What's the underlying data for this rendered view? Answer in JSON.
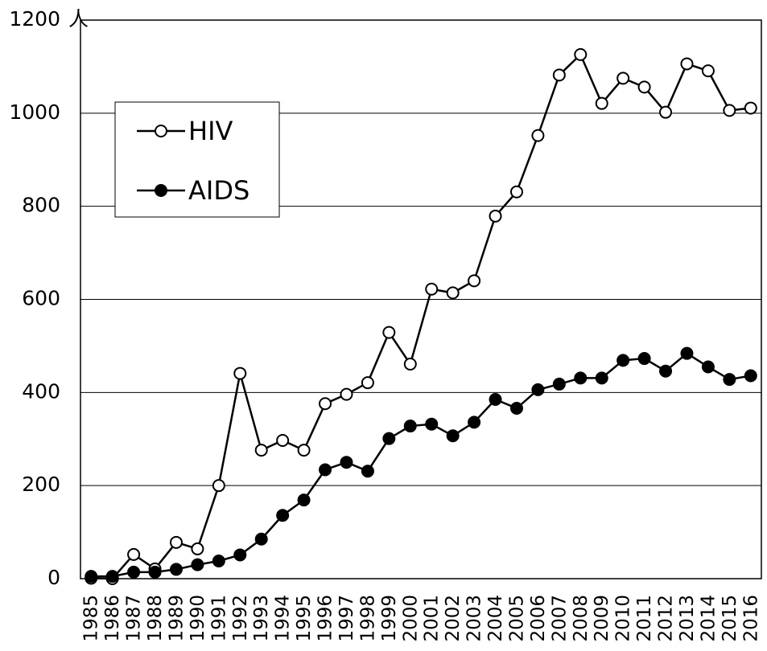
{
  "chart_data": {
    "type": "line",
    "y_unit": "人",
    "categories": [
      "1985",
      "1986",
      "1987",
      "1988",
      "1989",
      "1990",
      "1991",
      "1992",
      "1993",
      "1994",
      "1995",
      "1996",
      "1997",
      "1998",
      "1999",
      "2000",
      "2001",
      "2002",
      "2003",
      "2004",
      "2005",
      "2006",
      "2007",
      "2008",
      "2009",
      "2010",
      "2011",
      "2012",
      "2013",
      "2014",
      "2015",
      "2016"
    ],
    "series": [
      {
        "name": "HIV",
        "color": "#ffffff",
        "values": [
          1,
          0,
          52,
          21,
          78,
          64,
          200,
          441,
          276,
          297,
          276,
          376,
          396,
          421,
          529,
          461,
          622,
          614,
          640,
          779,
          831,
          952,
          1082,
          1126,
          1021,
          1075,
          1056,
          1002,
          1106,
          1091,
          1006,
          1011
        ]
      },
      {
        "name": "AIDS",
        "color": "#000000",
        "values": [
          5,
          5,
          14,
          14,
          20,
          30,
          38,
          51,
          85,
          136,
          169,
          234,
          250,
          231,
          301,
          328,
          332,
          307,
          336,
          385,
          366,
          406,
          418,
          431,
          431,
          469,
          473,
          446,
          484,
          455,
          428,
          436
        ]
      }
    ],
    "ylim": [
      0,
      1200
    ],
    "yticks": [
      0,
      200,
      400,
      600,
      800,
      1000,
      1200
    ],
    "grid": true
  }
}
